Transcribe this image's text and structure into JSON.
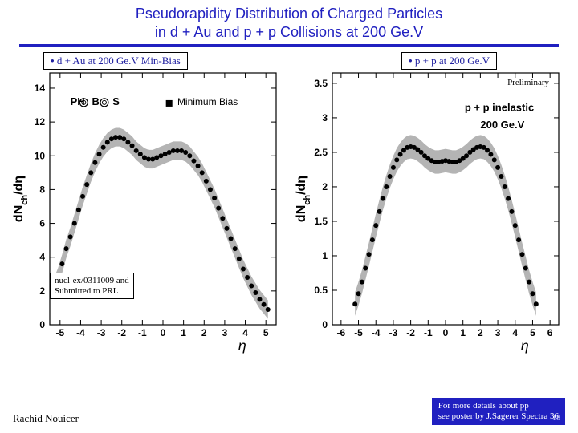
{
  "title_line1": "Pseudorapidity Distribution of Charged Particles",
  "title_line2": "in d + Au and p + p Collisions at 200 Ge.V",
  "left_badge": "d + Au at 200 Ge.V Min-Bias",
  "right_badge": "p + p at 200 Ge.V",
  "preliminary": "Preliminary",
  "note_line1": "nucl-ex/0311009 and",
  "note_line2": "Submitted to PRL",
  "author": "Rachid Nouicer",
  "info_line1": "For more details about pp",
  "info_line2": "see poster by J.Sagerer Spectra 36",
  "pagenum": "18",
  "left_chart": {
    "type": "scatter-band",
    "xlim": [
      -5.5,
      5.5
    ],
    "ylim": [
      0,
      14.9
    ],
    "xticks": [
      -5,
      -4,
      -3,
      -2,
      -1,
      0,
      1,
      2,
      3,
      4,
      5
    ],
    "yticks": [
      0,
      2,
      4,
      6,
      8,
      10,
      12,
      14
    ],
    "xlabel": "η",
    "ylabel": "dN_ch/dη",
    "legend": "Minimum Bias",
    "legend_marker": "square",
    "logo": "PHOBOS",
    "band_color": "#b4b4b4",
    "marker_color": "#000000",
    "marker_size": 3,
    "bg": "#ffffff",
    "grid": false,
    "points": [
      [
        -5.3,
        2.2
      ],
      [
        -5.1,
        2.8
      ],
      [
        -4.9,
        3.6
      ],
      [
        -4.7,
        4.5
      ],
      [
        -4.5,
        5.2
      ],
      [
        -4.3,
        6.0
      ],
      [
        -4.1,
        6.8
      ],
      [
        -3.9,
        7.6
      ],
      [
        -3.7,
        8.3
      ],
      [
        -3.5,
        9.0
      ],
      [
        -3.3,
        9.6
      ],
      [
        -3.1,
        10.1
      ],
      [
        -2.9,
        10.5
      ],
      [
        -2.7,
        10.8
      ],
      [
        -2.5,
        11.0
      ],
      [
        -2.3,
        11.1
      ],
      [
        -2.1,
        11.1
      ],
      [
        -1.9,
        11.0
      ],
      [
        -1.7,
        10.8
      ],
      [
        -1.5,
        10.6
      ],
      [
        -1.3,
        10.3
      ],
      [
        -1.1,
        10.1
      ],
      [
        -0.9,
        9.9
      ],
      [
        -0.7,
        9.8
      ],
      [
        -0.5,
        9.8
      ],
      [
        -0.3,
        9.9
      ],
      [
        -0.1,
        10.0
      ],
      [
        0.1,
        10.1
      ],
      [
        0.3,
        10.2
      ],
      [
        0.5,
        10.3
      ],
      [
        0.7,
        10.3
      ],
      [
        0.9,
        10.3
      ],
      [
        1.1,
        10.2
      ],
      [
        1.3,
        10.0
      ],
      [
        1.5,
        9.7
      ],
      [
        1.7,
        9.4
      ],
      [
        1.9,
        9.0
      ],
      [
        2.1,
        8.5
      ],
      [
        2.3,
        8.0
      ],
      [
        2.5,
        7.5
      ],
      [
        2.7,
        6.9
      ],
      [
        2.9,
        6.3
      ],
      [
        3.1,
        5.7
      ],
      [
        3.3,
        5.1
      ],
      [
        3.5,
        4.5
      ],
      [
        3.7,
        3.9
      ],
      [
        3.9,
        3.3
      ],
      [
        4.1,
        2.8
      ],
      [
        4.3,
        2.3
      ],
      [
        4.5,
        1.9
      ],
      [
        4.7,
        1.5
      ],
      [
        4.9,
        1.2
      ],
      [
        5.1,
        0.9
      ]
    ],
    "band_halfwidth": 0.55
  },
  "right_chart": {
    "type": "scatter-band",
    "xlim": [
      -6.5,
      6.5
    ],
    "ylim": [
      0,
      3.65
    ],
    "xticks": [
      -6,
      -5,
      -4,
      -3,
      -2,
      -1,
      0,
      1,
      2,
      3,
      4,
      5,
      6
    ],
    "yticks": [
      0,
      0.5,
      1,
      1.5,
      2,
      2.5,
      3,
      3.5
    ],
    "xlabel": "η",
    "ylabel": "dN_ch/dη",
    "annot1": "p + p inelastic",
    "annot2": "200 Ge.V",
    "band_color": "#b4b4b4",
    "marker_color": "#000000",
    "marker_size": 3,
    "bg": "#ffffff",
    "grid": false,
    "points": [
      [
        -5.2,
        0.3
      ],
      [
        -5.0,
        0.45
      ],
      [
        -4.8,
        0.62
      ],
      [
        -4.6,
        0.82
      ],
      [
        -4.4,
        1.02
      ],
      [
        -4.2,
        1.23
      ],
      [
        -4.0,
        1.44
      ],
      [
        -3.8,
        1.64
      ],
      [
        -3.6,
        1.83
      ],
      [
        -3.4,
        2.0
      ],
      [
        -3.2,
        2.15
      ],
      [
        -3.0,
        2.28
      ],
      [
        -2.8,
        2.39
      ],
      [
        -2.6,
        2.47
      ],
      [
        -2.4,
        2.53
      ],
      [
        -2.2,
        2.57
      ],
      [
        -2.0,
        2.58
      ],
      [
        -1.8,
        2.57
      ],
      [
        -1.6,
        2.54
      ],
      [
        -1.4,
        2.5
      ],
      [
        -1.2,
        2.45
      ],
      [
        -1.0,
        2.41
      ],
      [
        -0.8,
        2.38
      ],
      [
        -0.6,
        2.36
      ],
      [
        -0.4,
        2.36
      ],
      [
        -0.2,
        2.37
      ],
      [
        0.0,
        2.38
      ],
      [
        0.2,
        2.37
      ],
      [
        0.4,
        2.36
      ],
      [
        0.6,
        2.36
      ],
      [
        0.8,
        2.38
      ],
      [
        1.0,
        2.41
      ],
      [
        1.2,
        2.45
      ],
      [
        1.4,
        2.5
      ],
      [
        1.6,
        2.54
      ],
      [
        1.8,
        2.57
      ],
      [
        2.0,
        2.58
      ],
      [
        2.2,
        2.57
      ],
      [
        2.4,
        2.53
      ],
      [
        2.6,
        2.47
      ],
      [
        2.8,
        2.39
      ],
      [
        3.0,
        2.28
      ],
      [
        3.2,
        2.15
      ],
      [
        3.4,
        2.0
      ],
      [
        3.6,
        1.83
      ],
      [
        3.8,
        1.64
      ],
      [
        4.0,
        1.44
      ],
      [
        4.2,
        1.23
      ],
      [
        4.4,
        1.02
      ],
      [
        4.6,
        0.82
      ],
      [
        4.8,
        0.62
      ],
      [
        5.0,
        0.45
      ],
      [
        5.2,
        0.3
      ]
    ],
    "band_halfwidth": 0.17
  }
}
